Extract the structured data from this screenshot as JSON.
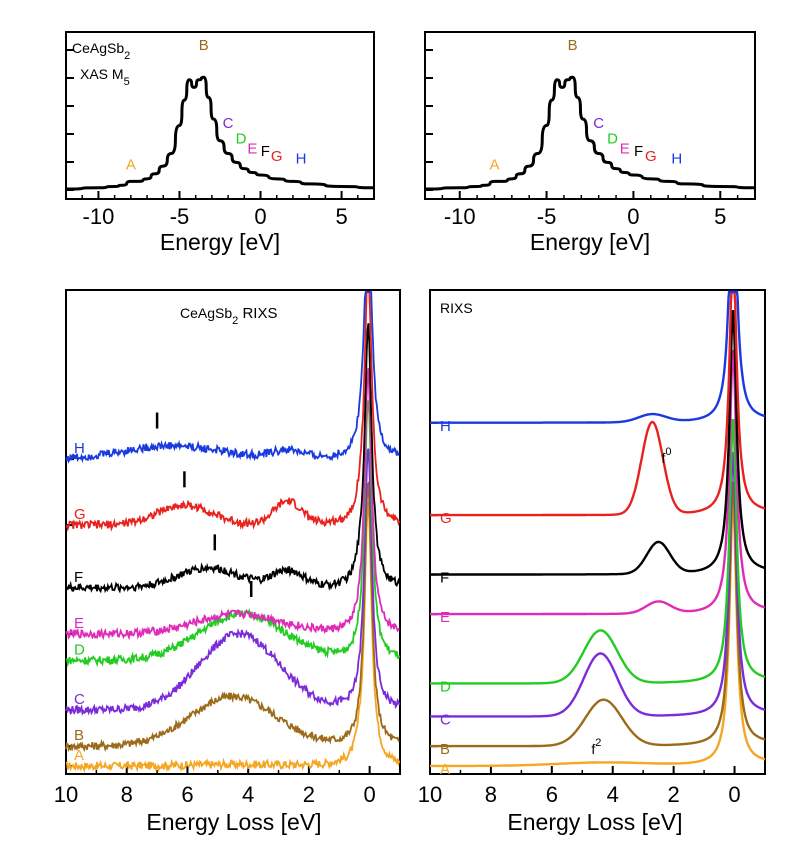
{
  "chart_data": [
    {
      "type": "line",
      "title": "",
      "annotation_lines": [
        "CeAgSb2",
        "XAS M5"
      ],
      "xlabel": "Energy [eV]",
      "xlim": [
        -12,
        7
      ],
      "xticks": [
        -10,
        -5,
        0,
        5
      ],
      "grid": false,
      "series": [
        {
          "x": [
            -12,
            -10,
            -9,
            -8.5,
            -8,
            -7.5,
            -7,
            -6.5,
            -6,
            -5.5,
            -5,
            -4.7,
            -4.4,
            -4.1,
            -3.8,
            -3.5,
            -3.2,
            -2.9,
            -2.5,
            -2,
            -1.5,
            -1,
            -0.5,
            0,
            1,
            2,
            3,
            5,
            7
          ],
          "y": [
            0.0,
            0.01,
            0.02,
            0.03,
            0.06,
            0.06,
            0.08,
            0.12,
            0.18,
            0.28,
            0.5,
            0.7,
            0.86,
            0.8,
            0.86,
            0.88,
            0.72,
            0.55,
            0.38,
            0.28,
            0.21,
            0.16,
            0.13,
            0.11,
            0.08,
            0.06,
            0.04,
            0.02,
            0.01
          ],
          "color": "#000000"
        }
      ],
      "point_labels": [
        {
          "text": "A",
          "x": -8.0,
          "color": "#F5A623"
        },
        {
          "text": "B",
          "x": -3.5,
          "color": "#9C6B1A"
        },
        {
          "text": "C",
          "x": -2.0,
          "color": "#7B2BD9"
        },
        {
          "text": "D",
          "x": -1.2,
          "color": "#22CC22"
        },
        {
          "text": "E",
          "x": -0.5,
          "color": "#E02BB8"
        },
        {
          "text": "F",
          "x": 0.3,
          "color": "#000000"
        },
        {
          "text": "G",
          "x": 1.0,
          "color": "#E8231F"
        },
        {
          "text": "H",
          "x": 2.5,
          "color": "#1A3AE0"
        }
      ]
    },
    {
      "type": "line",
      "title": "",
      "xlabel": "Energy [eV]",
      "xlim": [
        -12,
        7
      ],
      "xticks": [
        -10,
        -5,
        0,
        5
      ],
      "grid": false,
      "series": [
        {
          "x": [
            -12,
            -10,
            -9,
            -8.5,
            -8,
            -7.5,
            -7,
            -6.5,
            -6,
            -5.5,
            -5,
            -4.7,
            -4.4,
            -4.1,
            -3.8,
            -3.5,
            -3.2,
            -2.9,
            -2.5,
            -2,
            -1.5,
            -1,
            -0.5,
            0,
            1,
            2,
            3,
            5,
            7
          ],
          "y": [
            0.0,
            0.01,
            0.02,
            0.03,
            0.06,
            0.06,
            0.08,
            0.12,
            0.18,
            0.28,
            0.5,
            0.7,
            0.86,
            0.8,
            0.86,
            0.88,
            0.72,
            0.55,
            0.38,
            0.28,
            0.21,
            0.16,
            0.13,
            0.11,
            0.08,
            0.06,
            0.04,
            0.02,
            0.01
          ],
          "color": "#000000"
        }
      ],
      "point_labels": [
        {
          "text": "A",
          "x": -8.0,
          "color": "#F5A623"
        },
        {
          "text": "B",
          "x": -3.5,
          "color": "#9C6B1A"
        },
        {
          "text": "C",
          "x": -2.0,
          "color": "#7B2BD9"
        },
        {
          "text": "D",
          "x": -1.2,
          "color": "#22CC22"
        },
        {
          "text": "E",
          "x": -0.5,
          "color": "#E02BB8"
        },
        {
          "text": "F",
          "x": 0.3,
          "color": "#000000"
        },
        {
          "text": "G",
          "x": 1.0,
          "color": "#E8231F"
        },
        {
          "text": "H",
          "x": 2.5,
          "color": "#1A3AE0"
        }
      ]
    },
    {
      "type": "line",
      "title": "CeAgSb2 RIXS",
      "xlabel": "Energy Loss [eV]",
      "xlim": [
        10,
        -1
      ],
      "xticks": [
        10,
        8,
        6,
        4,
        2,
        0
      ],
      "grid": false,
      "series": [
        {
          "name": "A",
          "color": "#F5A623",
          "offset": 0.0,
          "humps": [
            [
              4.5,
              0.02,
              1.5
            ]
          ],
          "bump": 0.08
        },
        {
          "name": "B",
          "color": "#9C6B1A",
          "offset": 0.3,
          "humps": [
            [
              4.5,
              0.75,
              1.4
            ]
          ],
          "bump": 0.02
        },
        {
          "name": "C",
          "color": "#7B2BD9",
          "offset": 0.85,
          "humps": [
            [
              4.3,
              1.15,
              1.3
            ]
          ],
          "bump": 0.02
        },
        {
          "name": "D",
          "color": "#22CC22",
          "offset": 1.6,
          "humps": [
            [
              4.2,
              0.7,
              1.4
            ]
          ],
          "bump": 0.02
        },
        {
          "name": "E",
          "color": "#E02BB8",
          "offset": 2.0,
          "humps": [
            [
              4.3,
              0.3,
              1.4
            ]
          ],
          "bump": 0.02
        },
        {
          "name": "F",
          "color": "#000000",
          "offset": 2.7,
          "humps": [
            [
              5.3,
              0.3,
              1.0
            ],
            [
              2.7,
              0.25,
              0.5
            ]
          ],
          "bump": 0.08
        },
        {
          "name": "G",
          "color": "#E8231F",
          "offset": 3.65,
          "humps": [
            [
              6.1,
              0.3,
              0.9
            ],
            [
              2.7,
              0.35,
              0.45
            ]
          ],
          "bump": 0.08
        },
        {
          "name": "H",
          "color": "#1A3AE0",
          "offset": 4.65,
          "humps": [
            [
              6.5,
              0.2,
              1.6
            ],
            [
              2.7,
              0.12,
              0.5
            ]
          ],
          "bump": 0.05
        }
      ],
      "markers": [
        {
          "x": 7.0,
          "series": "H"
        },
        {
          "x": 6.1,
          "series": "G"
        },
        {
          "x": 5.1,
          "series": "F"
        },
        {
          "x": 3.9,
          "series": "E"
        }
      ]
    },
    {
      "type": "line",
      "title": "RIXS",
      "xlabel": "Energy Loss [eV]",
      "xlim": [
        10,
        -1
      ],
      "xticks": [
        10,
        8,
        6,
        4,
        2,
        0
      ],
      "grid": false,
      "series": [
        {
          "name": "A",
          "color": "#F5A623",
          "offset": 0.0,
          "humps": [
            [
              4.3,
              0.05,
              1.5
            ]
          ],
          "tail": 0.3
        },
        {
          "name": "B",
          "color": "#9C6B1A",
          "offset": 0.3,
          "humps": [
            [
              4.3,
              0.7,
              0.6
            ]
          ],
          "tail": 0.3
        },
        {
          "name": "C",
          "color": "#7B2BD9",
          "offset": 0.75,
          "humps": [
            [
              4.4,
              0.95,
              0.55
            ]
          ],
          "tail": 0.3
        },
        {
          "name": "D",
          "color": "#22CC22",
          "offset": 1.25,
          "humps": [
            [
              4.4,
              0.8,
              0.55
            ]
          ],
          "tail": 0.3
        },
        {
          "name": "E",
          "color": "#E02BB8",
          "offset": 2.3,
          "humps": [
            [
              2.5,
              0.18,
              0.4
            ]
          ],
          "tail": 0.3
        },
        {
          "name": "F",
          "color": "#000000",
          "offset": 2.9,
          "humps": [
            [
              2.5,
              0.48,
              0.38
            ]
          ],
          "tail": 0.3
        },
        {
          "name": "G",
          "color": "#E8231F",
          "offset": 3.8,
          "humps": [
            [
              2.7,
              1.4,
              0.35
            ]
          ],
          "tail": 0.3
        },
        {
          "name": "H",
          "color": "#1A3AE0",
          "offset": 5.2,
          "humps": [
            [
              2.7,
              0.12,
              0.45
            ]
          ],
          "tail": 0.2
        }
      ],
      "annotations": [
        {
          "text": "f",
          "sup": "0",
          "x": 2.4
        },
        {
          "text": "f",
          "sup": "2",
          "x": 4.7
        }
      ]
    }
  ]
}
